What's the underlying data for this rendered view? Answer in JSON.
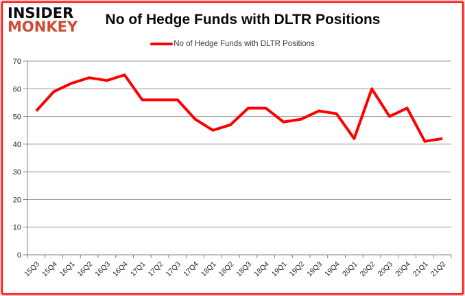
{
  "logo": {
    "line1": "INSIDER",
    "line2": "MONKEY"
  },
  "title": "No of Hedge Funds with DLTR Positions",
  "legend": {
    "label": "No of Hedge Funds with DLTR Positions"
  },
  "colors": {
    "series_line": "#fe0000",
    "grid": "#969696",
    "axis": "#808080",
    "tick_text": "#262626",
    "logo_black": "#0d0d0d",
    "logo_red": "#cd4a33",
    "frame_red": "#fb0f0c"
  },
  "chart_data": {
    "type": "line",
    "title": "No of Hedge Funds with DLTR Positions",
    "categories": [
      "15Q3",
      "15Q4",
      "16Q1",
      "16Q2",
      "16Q3",
      "16Q4",
      "17Q1",
      "17Q2",
      "17Q3",
      "17Q4",
      "18Q1",
      "18Q2",
      "18Q3",
      "18Q4",
      "19Q1",
      "19Q2",
      "19Q3",
      "19Q4",
      "20Q1",
      "20Q2",
      "20Q3",
      "20Q4",
      "21Q1",
      "21Q2"
    ],
    "series": [
      {
        "name": "No of Hedge Funds with DLTR Positions",
        "color": "#fe0000",
        "values": [
          52,
          59,
          62,
          64,
          63,
          65,
          56,
          56,
          56,
          49,
          45,
          47,
          53,
          53,
          48,
          49,
          52,
          51,
          42,
          60,
          50,
          53,
          41,
          42
        ]
      }
    ],
    "xlabel": "",
    "ylabel": "",
    "ylim": [
      0,
      70
    ],
    "yticks": [
      0,
      10,
      20,
      30,
      40,
      50,
      60,
      70
    ],
    "grid": true,
    "legend_position": "top-center",
    "x_tick_rotation_deg": -45
  }
}
